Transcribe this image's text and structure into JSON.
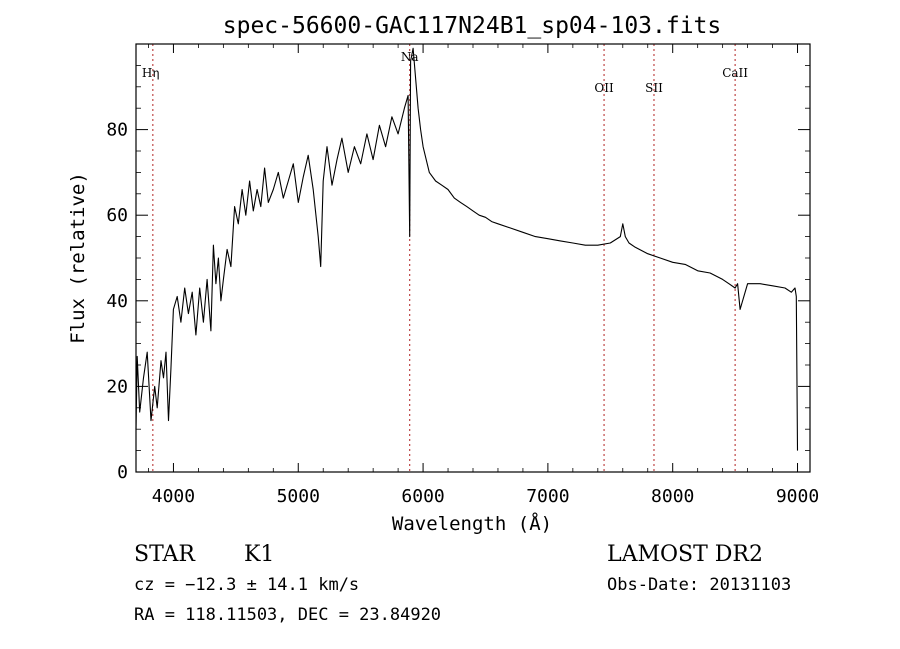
{
  "chart_data": {
    "type": "line",
    "title": "spec-56600-GAC117N24B1_sp04-103.fits",
    "xlabel": "Wavelength (Å)",
    "ylabel": "Flux (relative)",
    "xlim": [
      3700,
      9100
    ],
    "ylim": [
      0,
      100
    ],
    "xticks": [
      4000,
      5000,
      6000,
      7000,
      8000,
      9000
    ],
    "yticks": [
      0,
      20,
      40,
      60,
      80
    ],
    "grid": false,
    "line_color": "#000000",
    "marker_color": "#b22222",
    "markers": [
      {
        "label": "Hη",
        "x": 3835
      },
      {
        "label": "Na",
        "x": 5893
      },
      {
        "label": "OII",
        "x": 7450
      },
      {
        "label": "SII",
        "x": 7850
      },
      {
        "label": "CaII",
        "x": 8500
      }
    ],
    "series": [
      {
        "x": [
          3700,
          3710,
          3730,
          3760,
          3790,
          3820,
          3850,
          3870,
          3900,
          3920,
          3940,
          3960,
          3980,
          4000,
          4030,
          4060,
          4090,
          4120,
          4150,
          4180,
          4210,
          4240,
          4270,
          4300,
          4320,
          4340,
          4360,
          4380,
          4400,
          4430,
          4460,
          4490,
          4520,
          4550,
          4580,
          4610,
          4640,
          4670,
          4700,
          4730,
          4760,
          4800,
          4840,
          4880,
          4920,
          4960,
          5000,
          5040,
          5080,
          5120,
          5160,
          5180,
          5200,
          5230,
          5270,
          5310,
          5350,
          5400,
          5450,
          5500,
          5550,
          5600,
          5650,
          5700,
          5750,
          5800,
          5850,
          5880,
          5893,
          5900,
          5920,
          5940,
          5960,
          5980,
          6000,
          6050,
          6100,
          6150,
          6200,
          6250,
          6300,
          6350,
          6400,
          6450,
          6500,
          6550,
          6600,
          6700,
          6800,
          6900,
          7000,
          7100,
          7200,
          7300,
          7400,
          7500,
          7580,
          7600,
          7620,
          7650,
          7700,
          7800,
          7900,
          8000,
          8100,
          8200,
          8300,
          8400,
          8450,
          8500,
          8520,
          8540,
          8600,
          8700,
          8800,
          8900,
          8950,
          8980,
          8990,
          9000
        ],
        "values": [
          10,
          27,
          14,
          22,
          28,
          12,
          20,
          15,
          26,
          22,
          28,
          12,
          24,
          38,
          41,
          35,
          43,
          37,
          42,
          32,
          43,
          35,
          45,
          33,
          53,
          44,
          50,
          40,
          45,
          52,
          48,
          62,
          58,
          66,
          60,
          68,
          61,
          66,
          62,
          71,
          63,
          66,
          70,
          64,
          68,
          72,
          63,
          69,
          74,
          66,
          55,
          48,
          68,
          76,
          67,
          73,
          78,
          70,
          76,
          72,
          79,
          73,
          81,
          76,
          83,
          79,
          85,
          88,
          55,
          96,
          99,
          92,
          85,
          80,
          76,
          70,
          68,
          67,
          66,
          64,
          63,
          62,
          61,
          60,
          59.5,
          58.5,
          58,
          57,
          56,
          55,
          54.5,
          54,
          53.5,
          53,
          53,
          53.5,
          55,
          58,
          55,
          53.5,
          52.5,
          51,
          50,
          49,
          48.5,
          47,
          46.5,
          45,
          44,
          43,
          44,
          38,
          44,
          44,
          43.5,
          43,
          42,
          43,
          41,
          5
        ]
      }
    ],
    "info": {
      "object_type": "STAR",
      "subclass": "K1",
      "survey": "LAMOST DR2",
      "cz": "cz = −12.3 ± 14.1 km/s",
      "obs_date": "Obs-Date: 20131103",
      "radec": "RA = 118.11503, DEC =  23.84920"
    }
  }
}
